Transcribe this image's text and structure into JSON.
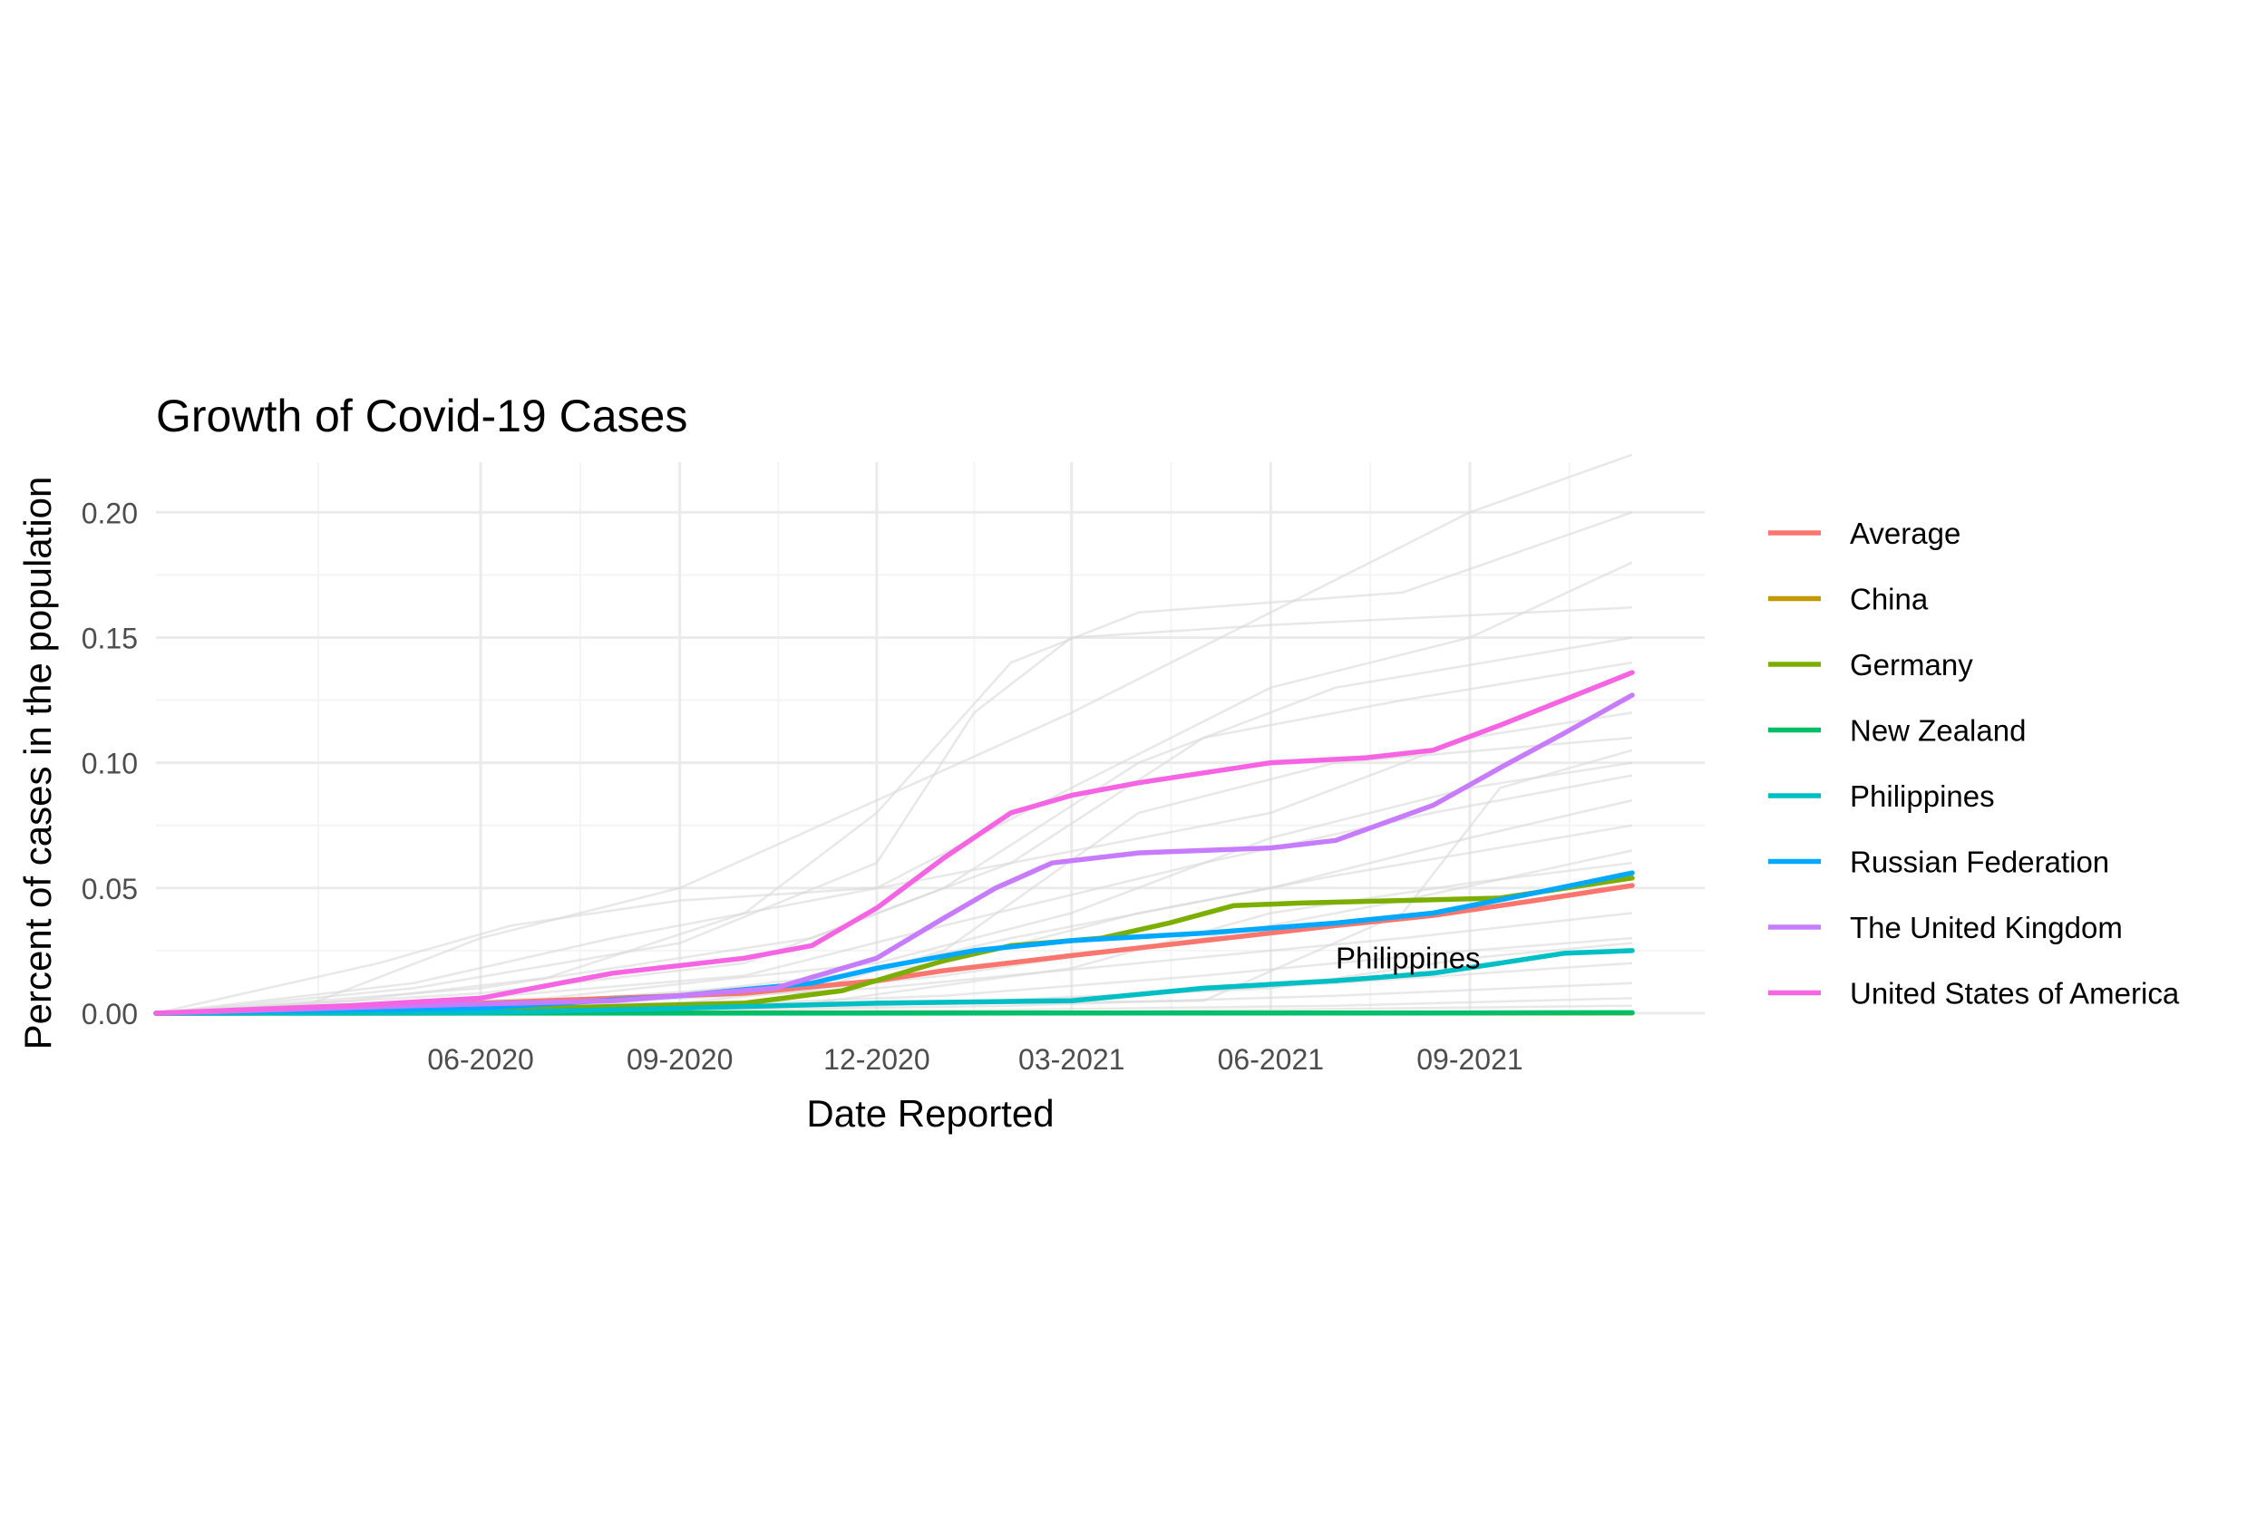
{
  "colors": {
    "background": "#ffffff",
    "grid_major": "#ebebeb",
    "grid_minor": "#f4f4f4",
    "other_countries": "#d9d9d9",
    "text": "#000000",
    "tick_text": "#4d4d4d"
  },
  "chart_data": {
    "type": "line",
    "title": "Growth of Covid-19 Cases",
    "xlabel": "Date Reported",
    "ylabel": "Percent of cases in the population",
    "x_axis_type": "date",
    "xlim": [
      "2020-01-03",
      "2021-11-15"
    ],
    "ylim": [
      0,
      0.22
    ],
    "x_ticks": [
      "2020-06-01",
      "2020-09-01",
      "2020-12-01",
      "2021-03-01",
      "2021-06-01",
      "2021-09-01"
    ],
    "x_tick_labels": [
      "06-2020",
      "09-2020",
      "12-2020",
      "03-2021",
      "06-2021",
      "09-2021"
    ],
    "y_ticks": [
      0.0,
      0.05,
      0.1,
      0.15,
      0.2
    ],
    "y_tick_labels": [
      "0.00",
      "0.05",
      "0.10",
      "0.15",
      "0.20"
    ],
    "grid": true,
    "legend_position": "right",
    "annotation": {
      "text": "Philippines",
      "x": "2021-07-01",
      "y": 0.018
    },
    "series": [
      {
        "name": "Average",
        "color": "#F8766D",
        "points": [
          [
            "2020-01-03",
            0
          ],
          [
            "2020-04-01",
            0.002
          ],
          [
            "2020-07-01",
            0.005
          ],
          [
            "2020-10-01",
            0.008
          ],
          [
            "2020-12-01",
            0.013
          ],
          [
            "2021-01-01",
            0.017
          ],
          [
            "2021-03-01",
            0.023
          ],
          [
            "2021-05-01",
            0.029
          ],
          [
            "2021-07-01",
            0.035
          ],
          [
            "2021-08-15",
            0.039
          ],
          [
            "2021-10-01",
            0.045
          ],
          [
            "2021-11-15",
            0.051
          ]
        ]
      },
      {
        "name": "China",
        "color": "#C49A00",
        "points": [
          [
            "2020-01-03",
            0
          ],
          [
            "2020-03-01",
            0.0001
          ],
          [
            "2021-11-15",
            0.0001
          ]
        ]
      },
      {
        "name": "Germany",
        "color": "#7CAE00",
        "points": [
          [
            "2020-01-03",
            0
          ],
          [
            "2020-04-01",
            0.002
          ],
          [
            "2020-07-01",
            0.002
          ],
          [
            "2020-10-01",
            0.004
          ],
          [
            "2020-11-15",
            0.009
          ],
          [
            "2021-01-01",
            0.021
          ],
          [
            "2021-02-01",
            0.027
          ],
          [
            "2021-03-15",
            0.03
          ],
          [
            "2021-04-15",
            0.036
          ],
          [
            "2021-05-15",
            0.043
          ],
          [
            "2021-06-15",
            0.044
          ],
          [
            "2021-08-01",
            0.045
          ],
          [
            "2021-09-15",
            0.046
          ],
          [
            "2021-11-15",
            0.054
          ]
        ]
      },
      {
        "name": "New Zealand",
        "color": "#00BE67",
        "points": [
          [
            "2020-01-03",
            0
          ],
          [
            "2021-08-15",
            0.0001
          ],
          [
            "2021-11-15",
            0.0002
          ]
        ]
      },
      {
        "name": "Philippines",
        "color": "#00BFC4",
        "points": [
          [
            "2020-01-03",
            0
          ],
          [
            "2020-06-01",
            0.0003
          ],
          [
            "2020-09-01",
            0.002
          ],
          [
            "2020-12-01",
            0.004
          ],
          [
            "2021-03-01",
            0.005
          ],
          [
            "2021-05-01",
            0.01
          ],
          [
            "2021-07-01",
            0.013
          ],
          [
            "2021-08-15",
            0.016
          ],
          [
            "2021-09-15",
            0.02
          ],
          [
            "2021-10-15",
            0.024
          ],
          [
            "2021-11-15",
            0.025
          ]
        ]
      },
      {
        "name": "Russian Federation",
        "color": "#00A9FF",
        "points": [
          [
            "2020-01-03",
            0
          ],
          [
            "2020-06-01",
            0.002
          ],
          [
            "2020-09-01",
            0.007
          ],
          [
            "2020-11-01",
            0.012
          ],
          [
            "2020-12-01",
            0.018
          ],
          [
            "2021-01-15",
            0.025
          ],
          [
            "2021-03-01",
            0.029
          ],
          [
            "2021-05-01",
            0.032
          ],
          [
            "2021-07-01",
            0.036
          ],
          [
            "2021-08-15",
            0.04
          ],
          [
            "2021-10-01",
            0.048
          ],
          [
            "2021-11-15",
            0.056
          ]
        ]
      },
      {
        "name": "The United Kingdom",
        "color": "#C77CFF",
        "points": [
          [
            "2020-01-03",
            0
          ],
          [
            "2020-05-01",
            0.003
          ],
          [
            "2020-08-01",
            0.005
          ],
          [
            "2020-10-15",
            0.01
          ],
          [
            "2020-12-01",
            0.022
          ],
          [
            "2021-01-01",
            0.038
          ],
          [
            "2021-01-25",
            0.05
          ],
          [
            "2021-02-20",
            0.06
          ],
          [
            "2021-04-01",
            0.064
          ],
          [
            "2021-06-01",
            0.066
          ],
          [
            "2021-07-01",
            0.069
          ],
          [
            "2021-08-15",
            0.083
          ],
          [
            "2021-09-15",
            0.098
          ],
          [
            "2021-10-15",
            0.112
          ],
          [
            "2021-11-15",
            0.127
          ]
        ]
      },
      {
        "name": "United States of America",
        "color": "#F564E3",
        "points": [
          [
            "2020-01-03",
            0
          ],
          [
            "2020-04-01",
            0.003
          ],
          [
            "2020-06-01",
            0.006
          ],
          [
            "2020-08-01",
            0.016
          ],
          [
            "2020-10-01",
            0.022
          ],
          [
            "2020-11-01",
            0.027
          ],
          [
            "2020-12-01",
            0.042
          ],
          [
            "2021-01-01",
            0.062
          ],
          [
            "2021-02-01",
            0.08
          ],
          [
            "2021-03-01",
            0.087
          ],
          [
            "2021-04-01",
            0.092
          ],
          [
            "2021-06-01",
            0.1
          ],
          [
            "2021-07-15",
            0.102
          ],
          [
            "2021-08-15",
            0.105
          ],
          [
            "2021-09-15",
            0.115
          ],
          [
            "2021-11-15",
            0.136
          ]
        ]
      }
    ],
    "background_series": [
      [
        [
          "2020-01-03",
          0
        ],
        [
          "2020-03-15",
          0.004
        ],
        [
          "2020-06-01",
          0.03
        ],
        [
          "2020-09-01",
          0.05
        ],
        [
          "2020-12-01",
          0.085
        ],
        [
          "2021-03-01",
          0.12
        ],
        [
          "2021-06-01",
          0.16
        ],
        [
          "2021-09-01",
          0.2
        ],
        [
          "2021-11-15",
          0.223
        ]
      ],
      [
        [
          "2020-01-03",
          0
        ],
        [
          "2020-04-01",
          0.005
        ],
        [
          "2020-07-01",
          0.014
        ],
        [
          "2020-10-01",
          0.04
        ],
        [
          "2020-12-01",
          0.08
        ],
        [
          "2021-02-01",
          0.14
        ],
        [
          "2021-04-01",
          0.16
        ],
        [
          "2021-08-01",
          0.168
        ],
        [
          "2021-11-15",
          0.2
        ]
      ],
      [
        [
          "2020-01-03",
          0
        ],
        [
          "2020-05-01",
          0.01
        ],
        [
          "2020-09-01",
          0.028
        ],
        [
          "2020-12-01",
          0.06
        ],
        [
          "2021-01-15",
          0.12
        ],
        [
          "2021-03-01",
          0.15
        ],
        [
          "2021-06-01",
          0.155
        ],
        [
          "2021-11-15",
          0.162
        ]
      ],
      [
        [
          "2020-01-03",
          0
        ],
        [
          "2020-04-15",
          0.02
        ],
        [
          "2020-06-15",
          0.035
        ],
        [
          "2020-09-01",
          0.045
        ],
        [
          "2020-12-01",
          0.05
        ],
        [
          "2021-03-01",
          0.09
        ],
        [
          "2021-06-01",
          0.13
        ],
        [
          "2021-09-01",
          0.15
        ],
        [
          "2021-11-15",
          0.18
        ]
      ],
      [
        [
          "2020-01-03",
          0
        ],
        [
          "2020-06-01",
          0.008
        ],
        [
          "2020-10-01",
          0.02
        ],
        [
          "2021-01-01",
          0.05
        ],
        [
          "2021-04-01",
          0.1
        ],
        [
          "2021-07-01",
          0.13
        ],
        [
          "2021-11-15",
          0.15
        ]
      ],
      [
        [
          "2020-01-03",
          0
        ],
        [
          "2020-06-01",
          0.01
        ],
        [
          "2020-11-01",
          0.03
        ],
        [
          "2021-02-01",
          0.06
        ],
        [
          "2021-05-01",
          0.11
        ],
        [
          "2021-08-01",
          0.125
        ],
        [
          "2021-11-15",
          0.14
        ]
      ],
      [
        [
          "2020-01-03",
          0
        ],
        [
          "2020-07-01",
          0.006
        ],
        [
          "2020-12-01",
          0.02
        ],
        [
          "2021-03-01",
          0.04
        ],
        [
          "2021-06-01",
          0.07
        ],
        [
          "2021-09-01",
          0.09
        ],
        [
          "2021-11-15",
          0.1
        ]
      ],
      [
        [
          "2020-01-03",
          0
        ],
        [
          "2020-05-15",
          0.005
        ],
        [
          "2020-10-01",
          0.015
        ],
        [
          "2021-01-01",
          0.035
        ],
        [
          "2021-05-01",
          0.06
        ],
        [
          "2021-08-15",
          0.08
        ],
        [
          "2021-11-15",
          0.095
        ]
      ],
      [
        [
          "2020-01-03",
          0
        ],
        [
          "2020-06-15",
          0.004
        ],
        [
          "2020-11-01",
          0.012
        ],
        [
          "2021-02-01",
          0.03
        ],
        [
          "2021-06-01",
          0.05
        ],
        [
          "2021-09-01",
          0.07
        ],
        [
          "2021-11-15",
          0.085
        ]
      ],
      [
        [
          "2020-01-03",
          0
        ],
        [
          "2020-08-01",
          0.005
        ],
        [
          "2021-01-01",
          0.02
        ],
        [
          "2021-04-01",
          0.04
        ],
        [
          "2021-07-01",
          0.055
        ],
        [
          "2021-11-15",
          0.075
        ]
      ],
      [
        [
          "2020-01-03",
          0
        ],
        [
          "2020-09-01",
          0.004
        ],
        [
          "2021-01-01",
          0.015
        ],
        [
          "2021-05-01",
          0.03
        ],
        [
          "2021-08-01",
          0.045
        ],
        [
          "2021-11-15",
          0.065
        ]
      ],
      [
        [
          "2020-01-03",
          0
        ],
        [
          "2020-07-01",
          0.003
        ],
        [
          "2020-12-01",
          0.01
        ],
        [
          "2021-04-01",
          0.02
        ],
        [
          "2021-08-01",
          0.03
        ],
        [
          "2021-11-15",
          0.04
        ]
      ],
      [
        [
          "2020-01-03",
          0
        ],
        [
          "2020-08-01",
          0.002
        ],
        [
          "2021-01-01",
          0.007
        ],
        [
          "2021-05-01",
          0.015
        ],
        [
          "2021-09-01",
          0.025
        ],
        [
          "2021-11-15",
          0.03
        ]
      ],
      [
        [
          "2020-01-03",
          0
        ],
        [
          "2020-10-01",
          0.002
        ],
        [
          "2021-03-01",
          0.006
        ],
        [
          "2021-07-01",
          0.012
        ],
        [
          "2021-11-15",
          0.02
        ]
      ],
      [
        [
          "2020-01-03",
          0
        ],
        [
          "2020-09-01",
          0.001
        ],
        [
          "2021-02-01",
          0.003
        ],
        [
          "2021-07-01",
          0.007
        ],
        [
          "2021-11-15",
          0.012
        ]
      ],
      [
        [
          "2020-01-03",
          0
        ],
        [
          "2021-01-01",
          0.001
        ],
        [
          "2021-07-01",
          0.003
        ],
        [
          "2021-11-15",
          0.006
        ]
      ],
      [
        [
          "2020-01-03",
          0
        ],
        [
          "2021-03-01",
          0.0005
        ],
        [
          "2021-11-15",
          0.003
        ]
      ],
      [
        [
          "2020-01-03",
          0
        ],
        [
          "2020-05-01",
          0.012
        ],
        [
          "2020-08-01",
          0.03
        ],
        [
          "2020-11-01",
          0.045
        ],
        [
          "2021-02-01",
          0.06
        ],
        [
          "2021-06-01",
          0.08
        ],
        [
          "2021-09-01",
          0.11
        ],
        [
          "2021-11-15",
          0.12
        ]
      ],
      [
        [
          "2020-01-03",
          0
        ],
        [
          "2020-10-15",
          0.005
        ],
        [
          "2021-01-01",
          0.025
        ],
        [
          "2021-04-01",
          0.08
        ],
        [
          "2021-07-01",
          0.1
        ],
        [
          "2021-11-15",
          0.11
        ]
      ],
      [
        [
          "2020-01-03",
          0
        ],
        [
          "2020-11-01",
          0.004
        ],
        [
          "2021-03-01",
          0.018
        ],
        [
          "2021-06-01",
          0.04
        ],
        [
          "2021-09-01",
          0.052
        ],
        [
          "2021-11-15",
          0.06
        ]
      ],
      [
        [
          "2020-01-03",
          0
        ],
        [
          "2021-05-01",
          0.005
        ],
        [
          "2021-08-01",
          0.04
        ],
        [
          "2021-09-15",
          0.09
        ],
        [
          "2021-11-15",
          0.105
        ]
      ],
      [
        [
          "2020-01-03",
          0
        ],
        [
          "2020-12-01",
          0.003
        ],
        [
          "2021-06-01",
          0.01
        ],
        [
          "2021-09-01",
          0.022
        ],
        [
          "2021-11-15",
          0.028
        ]
      ]
    ]
  }
}
